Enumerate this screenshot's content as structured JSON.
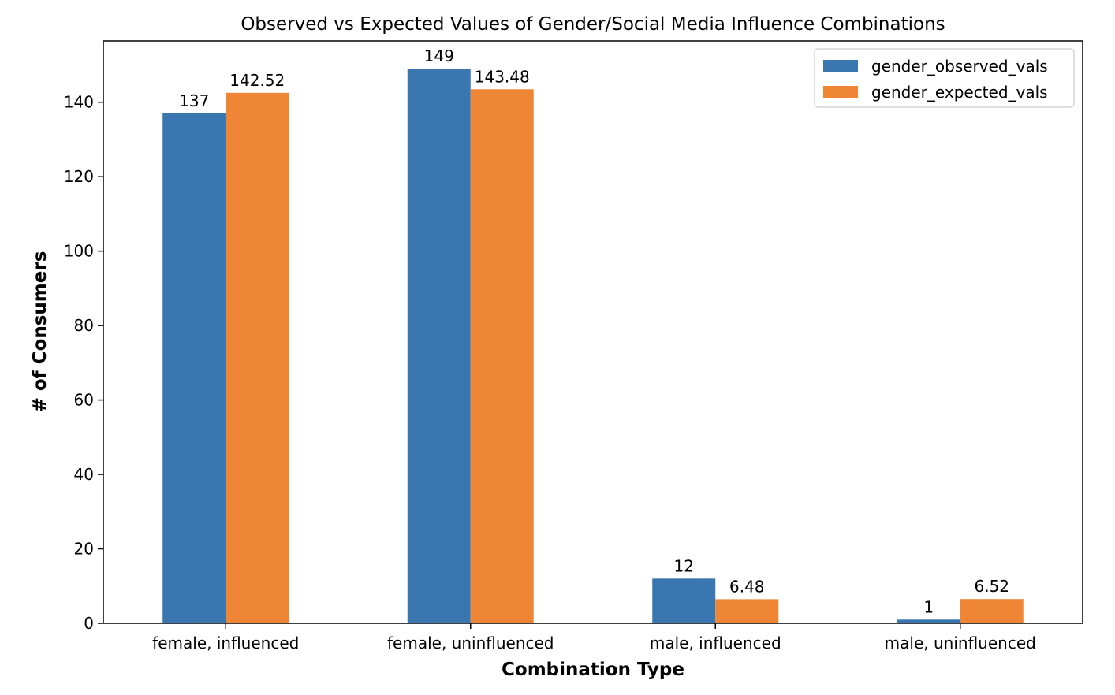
{
  "chart_data": {
    "type": "bar",
    "title": "Observed vs Expected Values of Gender/Social Media Influence Combinations",
    "xlabel": "Combination Type",
    "ylabel": "# of Consumers",
    "categories": [
      "female, influenced",
      "female, uninfluenced",
      "male, influenced",
      "male, uninfluenced"
    ],
    "series": [
      {
        "name": "gender_observed_vals",
        "color": "#3a76af",
        "values": [
          137,
          149,
          12,
          1
        ],
        "labels": [
          "137",
          "149",
          "12",
          "1"
        ]
      },
      {
        "name": "gender_expected_vals",
        "color": "#ef8636",
        "values": [
          142.52,
          143.48,
          6.48,
          6.52
        ],
        "labels": [
          "142.52",
          "143.48",
          "6.48",
          "6.52"
        ]
      }
    ],
    "ylim": [
      0,
      156.45
    ],
    "yticks": [
      0,
      20,
      40,
      60,
      80,
      100,
      120,
      140
    ],
    "grid": false,
    "legend_position": "top-right"
  }
}
